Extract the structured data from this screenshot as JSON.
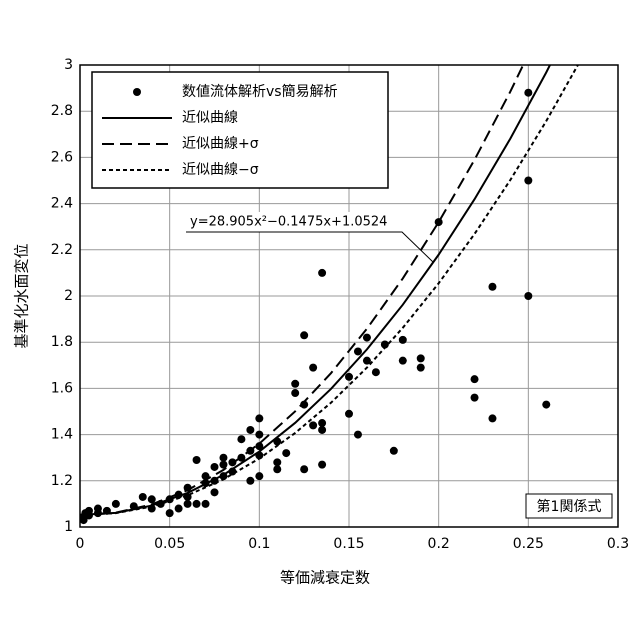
{
  "chart_data": {
    "type": "scatter",
    "x_label": "等価減衰定数",
    "y_label": "基準化水面変位",
    "annotation": "y=28.905x²−0.1475x+1.0524",
    "note": "第1関係式",
    "xlim": [
      0,
      0.3
    ],
    "ylim": [
      1,
      3
    ],
    "xticks": [
      0,
      0.05,
      0.1,
      0.15,
      0.2,
      0.25,
      0.3
    ],
    "yticks": [
      1,
      1.2,
      1.4,
      1.6,
      1.8,
      2,
      2.2,
      2.4,
      2.6,
      2.8,
      3
    ],
    "grid": true,
    "legend": "upper left",
    "series": [
      {
        "name": "数値流体解析vs簡易解析",
        "type": "scatter",
        "color": "#000000",
        "x": [
          0.25,
          0.25,
          0.25,
          0.26,
          0.23,
          0.23,
          0.22,
          0.22,
          0.2,
          0.19,
          0.19,
          0.18,
          0.18,
          0.175,
          0.17,
          0.165,
          0.16,
          0.16,
          0.155,
          0.15,
          0.15,
          0.155,
          0.135,
          0.135,
          0.135,
          0.135,
          0.13,
          0.13,
          0.125,
          0.125,
          0.125,
          0.12,
          0.12,
          0.115,
          0.11,
          0.11,
          0.11,
          0.1,
          0.1,
          0.1,
          0.1,
          0.1,
          0.095,
          0.095,
          0.095,
          0.09,
          0.09,
          0.085,
          0.085,
          0.08,
          0.08,
          0.08,
          0.075,
          0.075,
          0.075,
          0.07,
          0.07,
          0.07,
          0.065,
          0.065,
          0.06,
          0.06,
          0.06,
          0.055,
          0.055,
          0.05,
          0.05,
          0.045,
          0.04,
          0.04,
          0.035,
          0.03,
          0.02,
          0.015,
          0.01,
          0.01,
          0.005,
          0.005,
          0.003,
          0.002,
          0.002
        ],
        "values": [
          2.88,
          2.5,
          2.0,
          1.53,
          2.04,
          1.47,
          1.64,
          1.56,
          2.32,
          1.73,
          1.69,
          1.81,
          1.72,
          1.33,
          1.79,
          1.67,
          1.82,
          1.72,
          1.76,
          1.65,
          1.49,
          1.4,
          2.1,
          1.45,
          1.42,
          1.27,
          1.69,
          1.44,
          1.83,
          1.53,
          1.25,
          1.62,
          1.58,
          1.32,
          1.37,
          1.28,
          1.25,
          1.47,
          1.4,
          1.35,
          1.31,
          1.22,
          1.42,
          1.33,
          1.2,
          1.38,
          1.3,
          1.28,
          1.24,
          1.3,
          1.27,
          1.22,
          1.26,
          1.2,
          1.15,
          1.22,
          1.19,
          1.1,
          1.29,
          1.1,
          1.17,
          1.13,
          1.1,
          1.14,
          1.08,
          1.12,
          1.06,
          1.1,
          1.12,
          1.08,
          1.13,
          1.09,
          1.1,
          1.07,
          1.08,
          1.06,
          1.07,
          1.05,
          1.06,
          1.04,
          1.03
        ]
      },
      {
        "name": "近似曲線",
        "type": "line",
        "dash": "solid",
        "color": "#000000",
        "x": [
          0,
          0.02,
          0.04,
          0.06,
          0.08,
          0.1,
          0.12,
          0.14,
          0.16,
          0.18,
          0.2,
          0.22,
          0.24,
          0.26,
          0.28
        ],
        "values": [
          1.0524,
          1.061,
          1.0928,
          1.1476,
          1.2256,
          1.3267,
          1.4509,
          1.5983,
          1.7688,
          1.9624,
          2.1791,
          2.419,
          2.6819,
          2.9681,
          3.2774
        ]
      },
      {
        "name": "近似曲線+σ",
        "type": "line",
        "dash": "dashed",
        "color": "#000000",
        "x": [
          0,
          0.02,
          0.04,
          0.06,
          0.08,
          0.1,
          0.12,
          0.14,
          0.16,
          0.18,
          0.2,
          0.22,
          0.24,
          0.26
        ],
        "values": [
          1.0524,
          1.0621,
          1.0978,
          1.1595,
          1.2472,
          1.361,
          1.5007,
          1.6665,
          1.8583,
          2.0761,
          2.3199,
          2.5898,
          2.8856,
          3.2076
        ]
      },
      {
        "name": "近似曲線−σ",
        "type": "line",
        "dash": "dotted",
        "color": "#000000",
        "x": [
          0,
          0.02,
          0.04,
          0.06,
          0.08,
          0.1,
          0.12,
          0.14,
          0.16,
          0.18,
          0.2,
          0.22,
          0.24,
          0.26,
          0.28
        ],
        "values": [
          1.0524,
          1.0601,
          1.0883,
          1.1371,
          1.2065,
          1.2965,
          1.4071,
          1.5382,
          1.69,
          1.8623,
          2.0552,
          2.2686,
          2.5027,
          2.7574,
          3.0327
        ]
      }
    ]
  }
}
